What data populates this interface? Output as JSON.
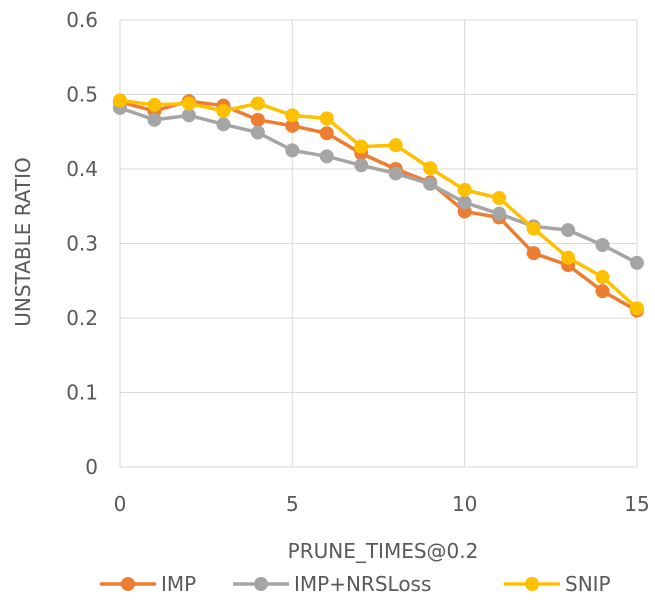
{
  "chart_data": {
    "type": "line",
    "title": "",
    "xlabel": "PRUNE_TIMES@0.2",
    "ylabel": "UNSTABLE RATIO",
    "xlim": [
      0,
      15
    ],
    "ylim": [
      0,
      0.6
    ],
    "x_ticks": [
      "0",
      "5",
      "10",
      "15"
    ],
    "y_ticks": [
      "0",
      "0.1",
      "0.2",
      "0.3",
      "0.4",
      "0.5",
      "0.6"
    ],
    "grid": true,
    "legend_position": "bottom",
    "x": [
      0,
      1,
      2,
      3,
      4,
      5,
      6,
      7,
      8,
      9,
      10,
      11,
      12,
      13,
      14,
      15
    ],
    "series": [
      {
        "name": "IMP",
        "color": "#ED7D31",
        "values": [
          0.49,
          0.478,
          0.491,
          0.485,
          0.466,
          0.458,
          0.448,
          0.421,
          0.4,
          0.382,
          0.343,
          0.335,
          0.287,
          0.271,
          0.236,
          0.21
        ]
      },
      {
        "name": "IMP+NRSLoss",
        "color": "#A5A5A5",
        "values": [
          0.482,
          0.466,
          0.472,
          0.46,
          0.449,
          0.425,
          0.417,
          0.405,
          0.394,
          0.38,
          0.355,
          0.34,
          0.323,
          0.318,
          0.298,
          0.274
        ]
      },
      {
        "name": "SNIP",
        "color": "#FFC000",
        "values": [
          0.492,
          0.486,
          0.488,
          0.478,
          0.488,
          0.472,
          0.468,
          0.43,
          0.432,
          0.401,
          0.372,
          0.361,
          0.32,
          0.281,
          0.255,
          0.213
        ]
      }
    ]
  }
}
